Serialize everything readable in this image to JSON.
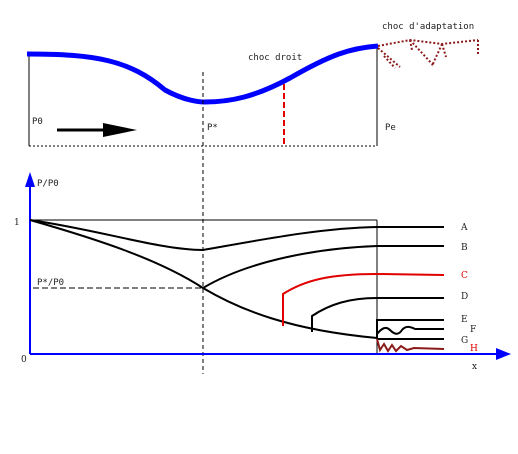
{
  "nozzle": {
    "inlet_label": "P0",
    "throat_label": "P*",
    "exit_label": "Pe",
    "normal_shock_label": "choc droit",
    "adaptation_shock_label": "choc d'adaptation"
  },
  "graph": {
    "y_axis_label": "P/P0",
    "x_axis_label": "x",
    "y_tick_one": "1",
    "y_tick_critical": "P*/P0",
    "origin_label": "0",
    "curves": [
      {
        "id": "A",
        "label": "A",
        "color": "#000000"
      },
      {
        "id": "B",
        "label": "B",
        "color": "#000000"
      },
      {
        "id": "C",
        "label": "C",
        "color": "#e00000"
      },
      {
        "id": "D",
        "label": "D",
        "color": "#000000"
      },
      {
        "id": "E",
        "label": "E",
        "color": "#000000"
      },
      {
        "id": "F",
        "label": "F",
        "color": "#000000"
      },
      {
        "id": "G",
        "label": "G",
        "color": "#000000"
      },
      {
        "id": "H",
        "label": "H",
        "color": "#e00000"
      }
    ]
  },
  "colors": {
    "wall": "#0000ff",
    "axis": "#0000ff",
    "shock": "#e00000",
    "adaptation": "#8b1a1a"
  }
}
